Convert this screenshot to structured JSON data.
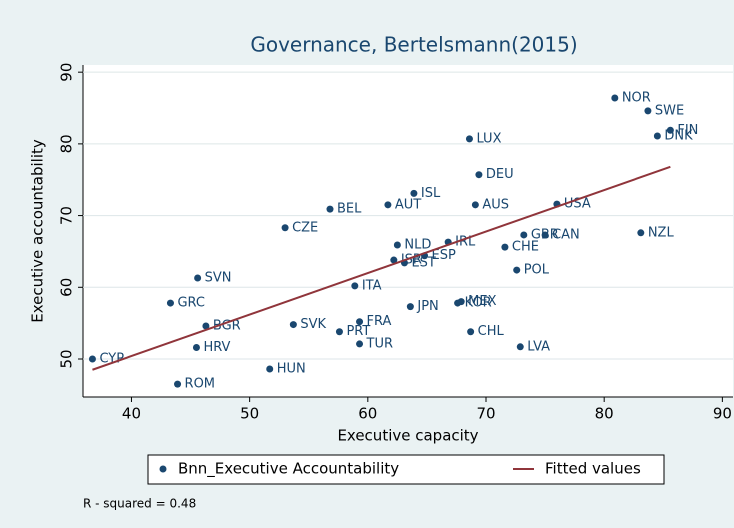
{
  "chart_data": {
    "type": "scatter",
    "title": "Governance, Bertelsmann(2015)",
    "x_label": "Executive capacity",
    "y_label": "Executive accountability",
    "xlim": [
      35.9,
      90.9
    ],
    "ylim": [
      44.7,
      91
    ],
    "xticks": [
      40,
      50,
      60,
      70,
      80,
      90
    ],
    "yticks": [
      50,
      60,
      70,
      80,
      90
    ],
    "grid": true,
    "note": "R - squared = 0.48",
    "series": [
      {
        "name": "Bnn_Executive Accountability",
        "color": "#1a476f",
        "labels": [
          "NOR",
          "SWE",
          "FIN",
          "DNK",
          "LUX",
          "DEU",
          "ISL",
          "USA",
          "AUS",
          "AUT",
          "BEL",
          "CZE",
          "NZL",
          "GBR",
          "CAN",
          "IRL",
          "NLD",
          "CHE",
          "ESP",
          "ISR",
          "EST",
          "POL",
          "SVN",
          "ITA",
          "MEX",
          "KOR",
          "JPN",
          "GRC",
          "SVK",
          "FRA",
          "BGR",
          "PRT",
          "CHL",
          "TUR",
          "LVA",
          "HRV",
          "CYP",
          "HUN",
          "ROM"
        ],
        "x": [
          80.9,
          83.7,
          85.6,
          84.5,
          68.6,
          69.4,
          63.9,
          76.0,
          69.1,
          61.7,
          56.8,
          53.0,
          83.1,
          73.2,
          75.0,
          66.8,
          62.5,
          71.6,
          64.8,
          62.2,
          63.1,
          72.6,
          45.6,
          58.9,
          67.9,
          67.6,
          63.6,
          43.3,
          53.7,
          59.3,
          46.3,
          57.6,
          68.7,
          59.3,
          72.9,
          45.5,
          36.7,
          51.7,
          43.9
        ],
        "values": [
          86.4,
          84.6,
          81.9,
          81.1,
          80.7,
          75.7,
          73.1,
          71.6,
          71.5,
          71.5,
          70.9,
          68.3,
          67.6,
          67.3,
          67.3,
          66.3,
          65.9,
          65.6,
          64.4,
          63.8,
          63.4,
          62.4,
          61.3,
          60.2,
          58.0,
          57.8,
          57.3,
          57.8,
          54.8,
          55.2,
          54.6,
          53.8,
          53.8,
          52.1,
          51.7,
          51.6,
          50.0,
          48.6,
          46.5
        ]
      },
      {
        "name": "Fitted values",
        "type": "line",
        "color": "#90353b",
        "x": [
          36.7,
          85.6
        ],
        "values": [
          48.5,
          76.8
        ]
      }
    ]
  }
}
